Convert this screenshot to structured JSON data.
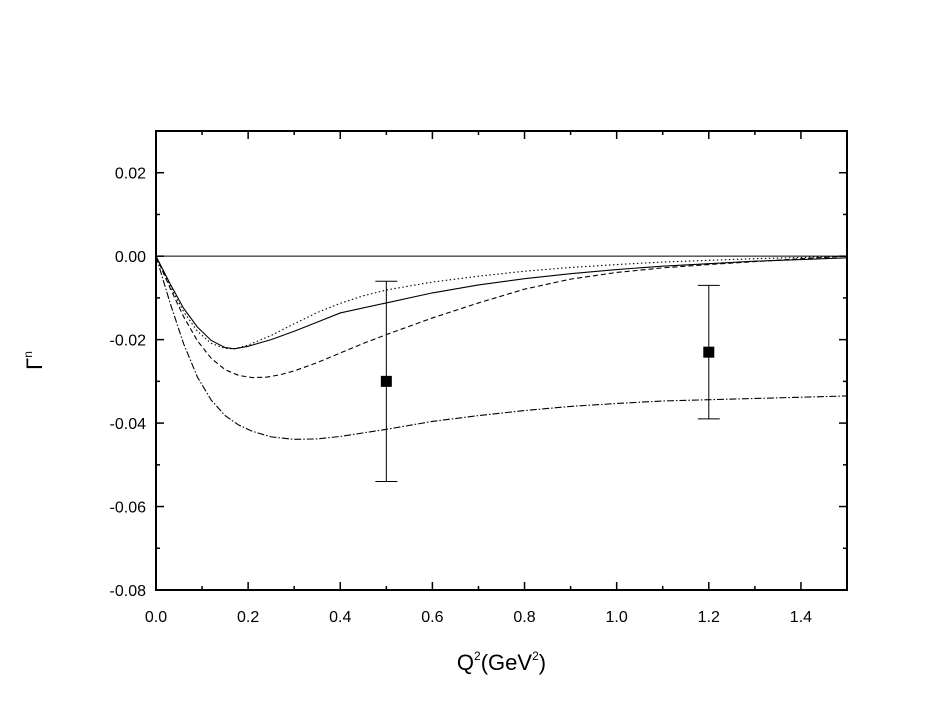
{
  "chart_data": {
    "type": "line",
    "title": "",
    "xlabel": {
      "base": "Q",
      "sup1": "2",
      "mid": "(GeV",
      "sup2": "2",
      "end": ")"
    },
    "ylabel": {
      "base": "Γ",
      "sup": "n"
    },
    "xlim": [
      0.0,
      1.5
    ],
    "ylim": [
      -0.08,
      0.03
    ],
    "x_ticks": [
      {
        "value": 0.0,
        "label": "0.0"
      },
      {
        "value": 0.2,
        "label": "0.2"
      },
      {
        "value": 0.4,
        "label": "0.4"
      },
      {
        "value": 0.6,
        "label": "0.6"
      },
      {
        "value": 0.8,
        "label": "0.8"
      },
      {
        "value": 1.0,
        "label": "1.0"
      },
      {
        "value": 1.2,
        "label": "1.2"
      },
      {
        "value": 1.4,
        "label": "1.4"
      }
    ],
    "y_ticks": [
      {
        "value": 0.02,
        "label": "0.02"
      },
      {
        "value": 0.0,
        "label": "0.00"
      },
      {
        "value": -0.02,
        "label": "-0.02"
      },
      {
        "value": -0.04,
        "label": "-0.04"
      },
      {
        "value": -0.06,
        "label": "-0.06"
      },
      {
        "value": -0.08,
        "label": "-0.08"
      }
    ],
    "grid": false,
    "zero_line": true,
    "series": [
      {
        "style": "solid",
        "x": [
          0.0,
          0.03,
          0.06,
          0.09,
          0.12,
          0.15,
          0.17,
          0.2,
          0.25,
          0.3,
          0.35,
          0.4,
          0.5,
          0.6,
          0.7,
          0.8,
          0.9,
          1.0,
          1.1,
          1.2,
          1.3,
          1.4,
          1.5
        ],
        "y": [
          0.0,
          -0.0065,
          -0.0125,
          -0.017,
          -0.0202,
          -0.0219,
          -0.0222,
          -0.0216,
          -0.02,
          -0.018,
          -0.0158,
          -0.0136,
          -0.0112,
          -0.0088,
          -0.0069,
          -0.0054,
          -0.0042,
          -0.0032,
          -0.0024,
          -0.0018,
          -0.0012,
          -0.0008,
          -0.0004
        ]
      },
      {
        "style": "dotted",
        "x": [
          0.0,
          0.03,
          0.06,
          0.09,
          0.12,
          0.15,
          0.17,
          0.2,
          0.25,
          0.3,
          0.35,
          0.4,
          0.45,
          0.5,
          0.6,
          0.7,
          0.8,
          0.9,
          1.0,
          1.1,
          1.2,
          1.3,
          1.4,
          1.5
        ],
        "y": [
          0.0,
          -0.007,
          -0.0133,
          -0.018,
          -0.0209,
          -0.0221,
          -0.0222,
          -0.0213,
          -0.019,
          -0.0162,
          -0.0135,
          -0.0113,
          -0.0095,
          -0.0081,
          -0.0062,
          -0.0048,
          -0.0036,
          -0.0027,
          -0.002,
          -0.0014,
          -0.001,
          -0.0006,
          -0.0003,
          0.0
        ]
      },
      {
        "style": "dashed",
        "x": [
          0.0,
          0.03,
          0.06,
          0.09,
          0.12,
          0.15,
          0.18,
          0.21,
          0.24,
          0.27,
          0.3,
          0.35,
          0.4,
          0.45,
          0.5,
          0.6,
          0.7,
          0.8,
          0.9,
          1.0,
          1.1,
          1.2,
          1.3,
          1.4,
          1.5
        ],
        "y": [
          0.0,
          -0.0075,
          -0.0145,
          -0.0203,
          -0.0245,
          -0.0272,
          -0.0286,
          -0.0291,
          -0.029,
          -0.0284,
          -0.0275,
          -0.0255,
          -0.0232,
          -0.0209,
          -0.0188,
          -0.0148,
          -0.0112,
          -0.0079,
          -0.0055,
          -0.0039,
          -0.0028,
          -0.002,
          -0.0013,
          -0.0006,
          0.0
        ]
      },
      {
        "style": "dash-dot",
        "x": [
          0.0,
          0.03,
          0.06,
          0.09,
          0.12,
          0.15,
          0.18,
          0.21,
          0.25,
          0.3,
          0.35,
          0.4,
          0.5,
          0.6,
          0.7,
          0.8,
          0.9,
          1.0,
          1.1,
          1.2,
          1.3,
          1.4,
          1.5
        ],
        "y": [
          0.0,
          -0.011,
          -0.021,
          -0.029,
          -0.0345,
          -0.0382,
          -0.0405,
          -0.042,
          -0.0433,
          -0.0439,
          -0.0438,
          -0.0432,
          -0.0415,
          -0.0396,
          -0.0382,
          -0.037,
          -0.036,
          -0.0353,
          -0.0347,
          -0.0344,
          -0.0341,
          -0.0338,
          -0.0335
        ]
      }
    ],
    "error_points": [
      {
        "x": 0.5,
        "y": -0.03,
        "ylow": -0.054,
        "yhigh": -0.006
      },
      {
        "x": 1.2,
        "y": -0.023,
        "ylow": -0.039,
        "yhigh": -0.007
      }
    ]
  }
}
